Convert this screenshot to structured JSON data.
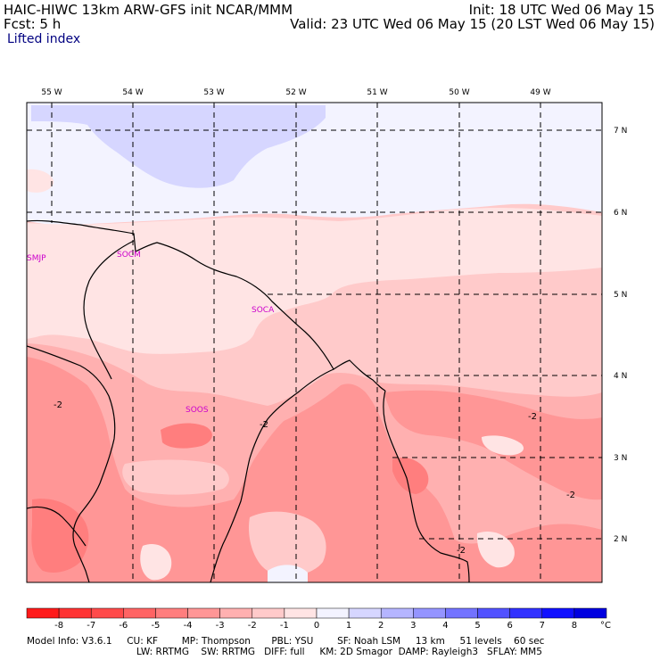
{
  "header": {
    "title_left": "HAIC-HIWC 13km ARW-GFS init   NCAR/MMM",
    "forecast": "Fcst:     5 h",
    "field_name": "Lifted index",
    "init_time": "Init: 18 UTC Wed 06 May 15",
    "valid_time": "Valid: 23 UTC Wed 06 May 15 (20 LST Wed 06 May 15)"
  },
  "map": {
    "longitude_labels": [
      "55 W",
      "54 W",
      "53 W",
      "52 W",
      "51 W",
      "50 W",
      "49 W"
    ],
    "latitude_labels": [
      "7 N",
      "6 N",
      "5 N",
      "4 N",
      "3 N",
      "2 N"
    ],
    "station_labels": [
      "SMJP",
      "SOCM",
      "SOCA",
      "SOOS"
    ],
    "contour_labels": [
      "-2",
      "-2",
      "-2",
      "-2",
      "-2"
    ]
  },
  "colorbar": {
    "tick_labels": [
      "-8",
      "-7",
      "-6",
      "-5",
      "-4",
      "-3",
      "-2",
      "-1",
      "0",
      "1",
      "2",
      "3",
      "4",
      "5",
      "6",
      "7",
      "8"
    ],
    "unit": "°C",
    "colors": [
      "#ff1a1a",
      "#ff3333",
      "#ff4a4a",
      "#ff6464",
      "#ff7e7e",
      "#ff9696",
      "#ffb0b0",
      "#ffcaca",
      "#ffe4e4",
      "#f3f3ff",
      "#d6d6ff",
      "#b5b5ff",
      "#9494ff",
      "#7373ff",
      "#5252ff",
      "#3131ff",
      "#1010ff",
      "#0000e0"
    ]
  },
  "footer": {
    "line1": [
      "Model Info: V3.6.1",
      "CU: KF",
      "MP: Thompson",
      "PBL: YSU",
      "SF: Noah LSM",
      "13 km",
      "51 levels",
      "60 sec"
    ],
    "line2": [
      "LW: RRTMG",
      "SW: RRTMG",
      "DIFF: full",
      "KM: 2D Smagor",
      "DAMP: Rayleigh3",
      "SFLAY: MM5"
    ]
  }
}
